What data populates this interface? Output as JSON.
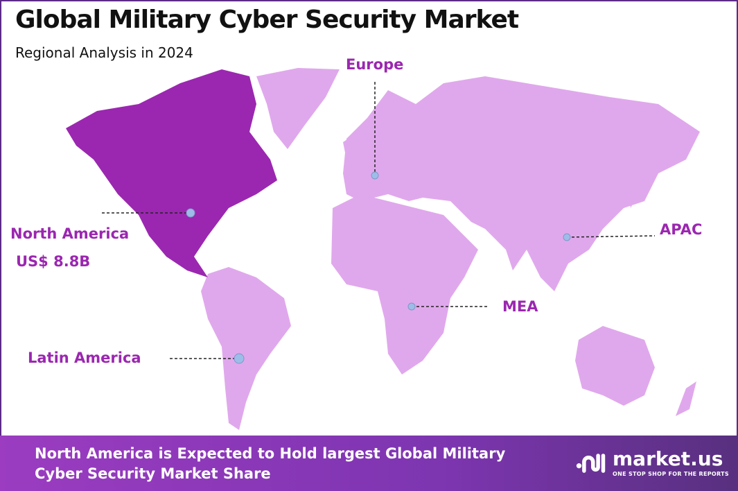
{
  "header": {
    "title": "Global Military Cyber Security Market",
    "subtitle": "Regional Analysis in 2024"
  },
  "regions": [
    {
      "name": "North America",
      "value": "US$ 8.8B",
      "highlighted": true
    },
    {
      "name": "Europe"
    },
    {
      "name": "APAC"
    },
    {
      "name": "MEA"
    },
    {
      "name": "Latin America"
    }
  ],
  "colors": {
    "highlight": "#9b27b0",
    "land": "#e0a8ec",
    "marker": "#9dbde8",
    "label": "#9b27b0"
  },
  "footer": {
    "text_line1": "North America is Expected to Hold largest Global Military",
    "text_line2": "Cyber Security Market Share",
    "logo_name": "market.us",
    "logo_tagline": "ONE STOP SHOP FOR THE REPORTS"
  }
}
